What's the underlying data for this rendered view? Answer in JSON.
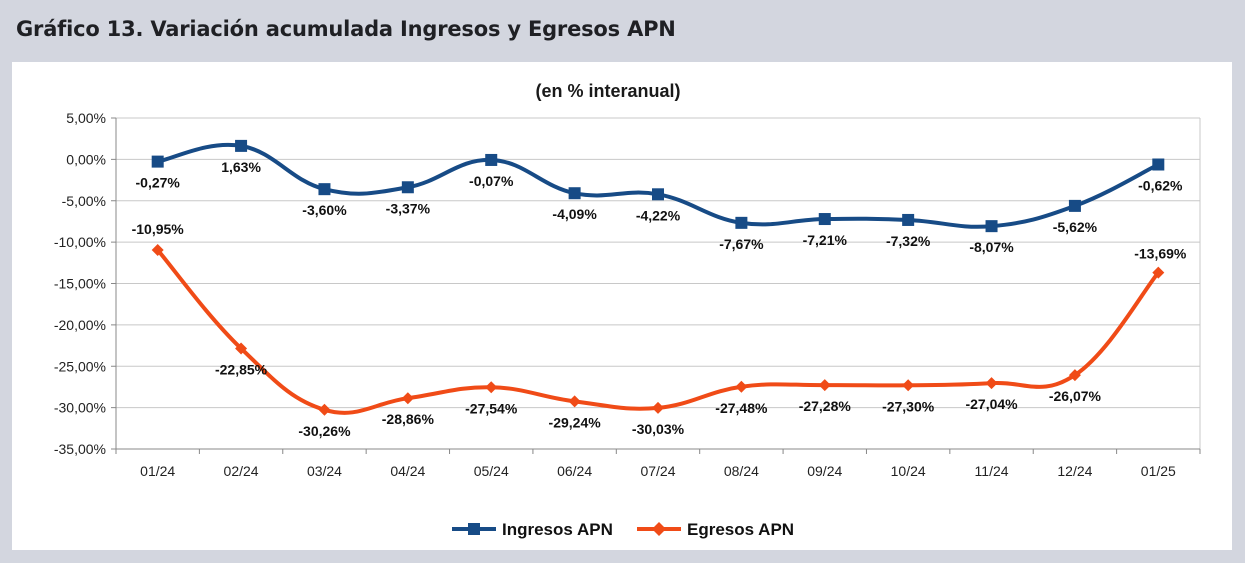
{
  "header": {
    "title": "Gráfico 13. Variación acumulada Ingresos y Egresos APN"
  },
  "colors": {
    "ingresos": "#174b86",
    "egresos": "#f04b17",
    "grid": "#c8c8c8",
    "axis": "#888888"
  },
  "chart_data": {
    "type": "line",
    "title": "(en % interanual)",
    "xlabel": "",
    "ylabel": "",
    "categories": [
      "01/24",
      "02/24",
      "03/24",
      "04/24",
      "05/24",
      "06/24",
      "07/24",
      "08/24",
      "09/24",
      "10/24",
      "11/24",
      "12/24",
      "01/25"
    ],
    "ylim": [
      -35,
      5
    ],
    "yticks": [
      5,
      0,
      -5,
      -10,
      -15,
      -20,
      -25,
      -30,
      -35
    ],
    "ytick_labels": [
      "5,00%",
      "0,00%",
      "-5,00%",
      "-10,00%",
      "-15,00%",
      "-20,00%",
      "-25,00%",
      "-30,00%",
      "-35,00%"
    ],
    "grid": true,
    "legend_position": "bottom",
    "series": [
      {
        "name": "Ingresos APN",
        "marker": "square",
        "values": [
          -0.27,
          1.63,
          -3.6,
          -3.37,
          -0.07,
          -4.09,
          -4.22,
          -7.67,
          -7.21,
          -7.32,
          -8.07,
          -5.62,
          -0.62
        ],
        "labels": [
          "-0,27%",
          "1,63%",
          "-3,60%",
          "-3,37%",
          "-0,07%",
          "-4,09%",
          "-4,22%",
          "-7,67%",
          "-7,21%",
          "-7,32%",
          "-8,07%",
          "-5,62%",
          "-0,62%"
        ]
      },
      {
        "name": "Egresos APN",
        "marker": "diamond",
        "values": [
          -10.95,
          -22.85,
          -30.26,
          -28.86,
          -27.54,
          -29.24,
          -30.03,
          -27.48,
          -27.28,
          -27.3,
          -27.04,
          -26.07,
          -13.69
        ],
        "labels": [
          "-10,95%",
          "-22,85%",
          "-30,26%",
          "-28,86%",
          "-27,54%",
          "-29,24%",
          "-30,03%",
          "-27,48%",
          "-27,28%",
          "-27,30%",
          "-27,04%",
          "-26,07%",
          "-13,69%"
        ]
      }
    ]
  }
}
